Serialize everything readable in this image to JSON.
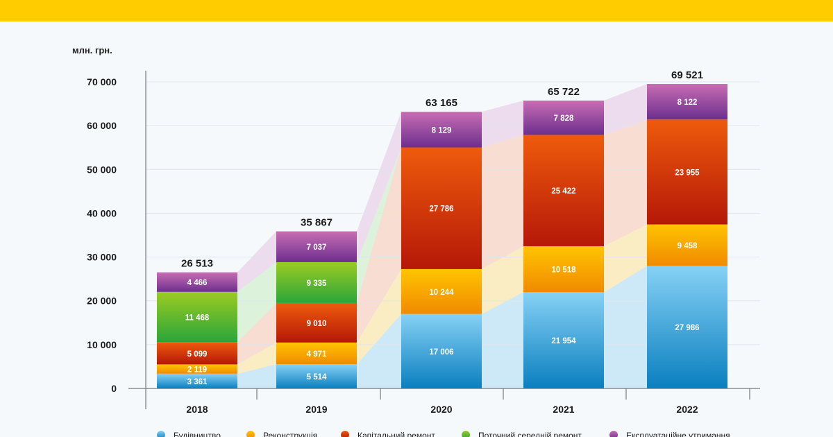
{
  "colors": {
    "top_bar": "#ffcc00",
    "background": "#f6f9fc"
  },
  "chart_data": {
    "type": "bar",
    "stacked": true,
    "unit_label": "млн. грн.",
    "categories": [
      "2018",
      "2019",
      "2020",
      "2021",
      "2022"
    ],
    "ylim": [
      0,
      70000
    ],
    "yticks": [
      0,
      10000,
      20000,
      30000,
      40000,
      50000,
      60000,
      70000
    ],
    "ytick_labels": [
      "0",
      "10 000",
      "20 000",
      "30 000",
      "40 000",
      "50 000",
      "60 000",
      "70 000"
    ],
    "totals": [
      26513,
      35867,
      63165,
      65722,
      69521
    ],
    "total_labels": [
      "26 513",
      "35 867",
      "63 165",
      "65 722",
      "69 521"
    ],
    "grid": true,
    "legend_position": "bottom",
    "series": [
      {
        "name": "Будівництво",
        "values": [
          3361,
          5514,
          17006,
          21954,
          27986
        ],
        "labels": [
          "3 361",
          "5 514",
          "17 006",
          "21 954",
          "27 986"
        ],
        "color_top": "#86d1f5",
        "color_bottom": "#0a7fbf",
        "band_color": "#bfe3f7"
      },
      {
        "name": "Реконструкція",
        "values": [
          2119,
          4971,
          10244,
          10518,
          9458
        ],
        "labels": [
          "2 119",
          "4 971",
          "10 244",
          "10 518",
          "9 458"
        ],
        "color_top": "#ffc400",
        "color_bottom": "#f08a00",
        "band_color": "#fbe7b0"
      },
      {
        "name": "Капітальний ремонт",
        "values": [
          5099,
          9010,
          27786,
          25422,
          23955
        ],
        "labels": [
          "5 099",
          "9 010",
          "27 786",
          "25 422",
          "23 955"
        ],
        "color_top": "#ee5b0c",
        "color_bottom": "#b51808",
        "band_color": "#f8d3c4"
      },
      {
        "name": "Поточний середній ремонт",
        "values": [
          11468,
          9335,
          0,
          0,
          0
        ],
        "labels": [
          "11 468",
          "9 335",
          "",
          "",
          ""
        ],
        "color_top": "#9ccb22",
        "color_bottom": "#2aa53a",
        "band_color": "#d3efd0"
      },
      {
        "name": "Експлуатаційне утримання",
        "values": [
          4466,
          7037,
          8129,
          7828,
          8122
        ],
        "labels": [
          "4 466",
          "7 037",
          "8 129",
          "7 828",
          "8 122"
        ],
        "color_top": "#c86db3",
        "color_bottom": "#6c2f8e",
        "band_color": "#ead0ea"
      }
    ]
  }
}
